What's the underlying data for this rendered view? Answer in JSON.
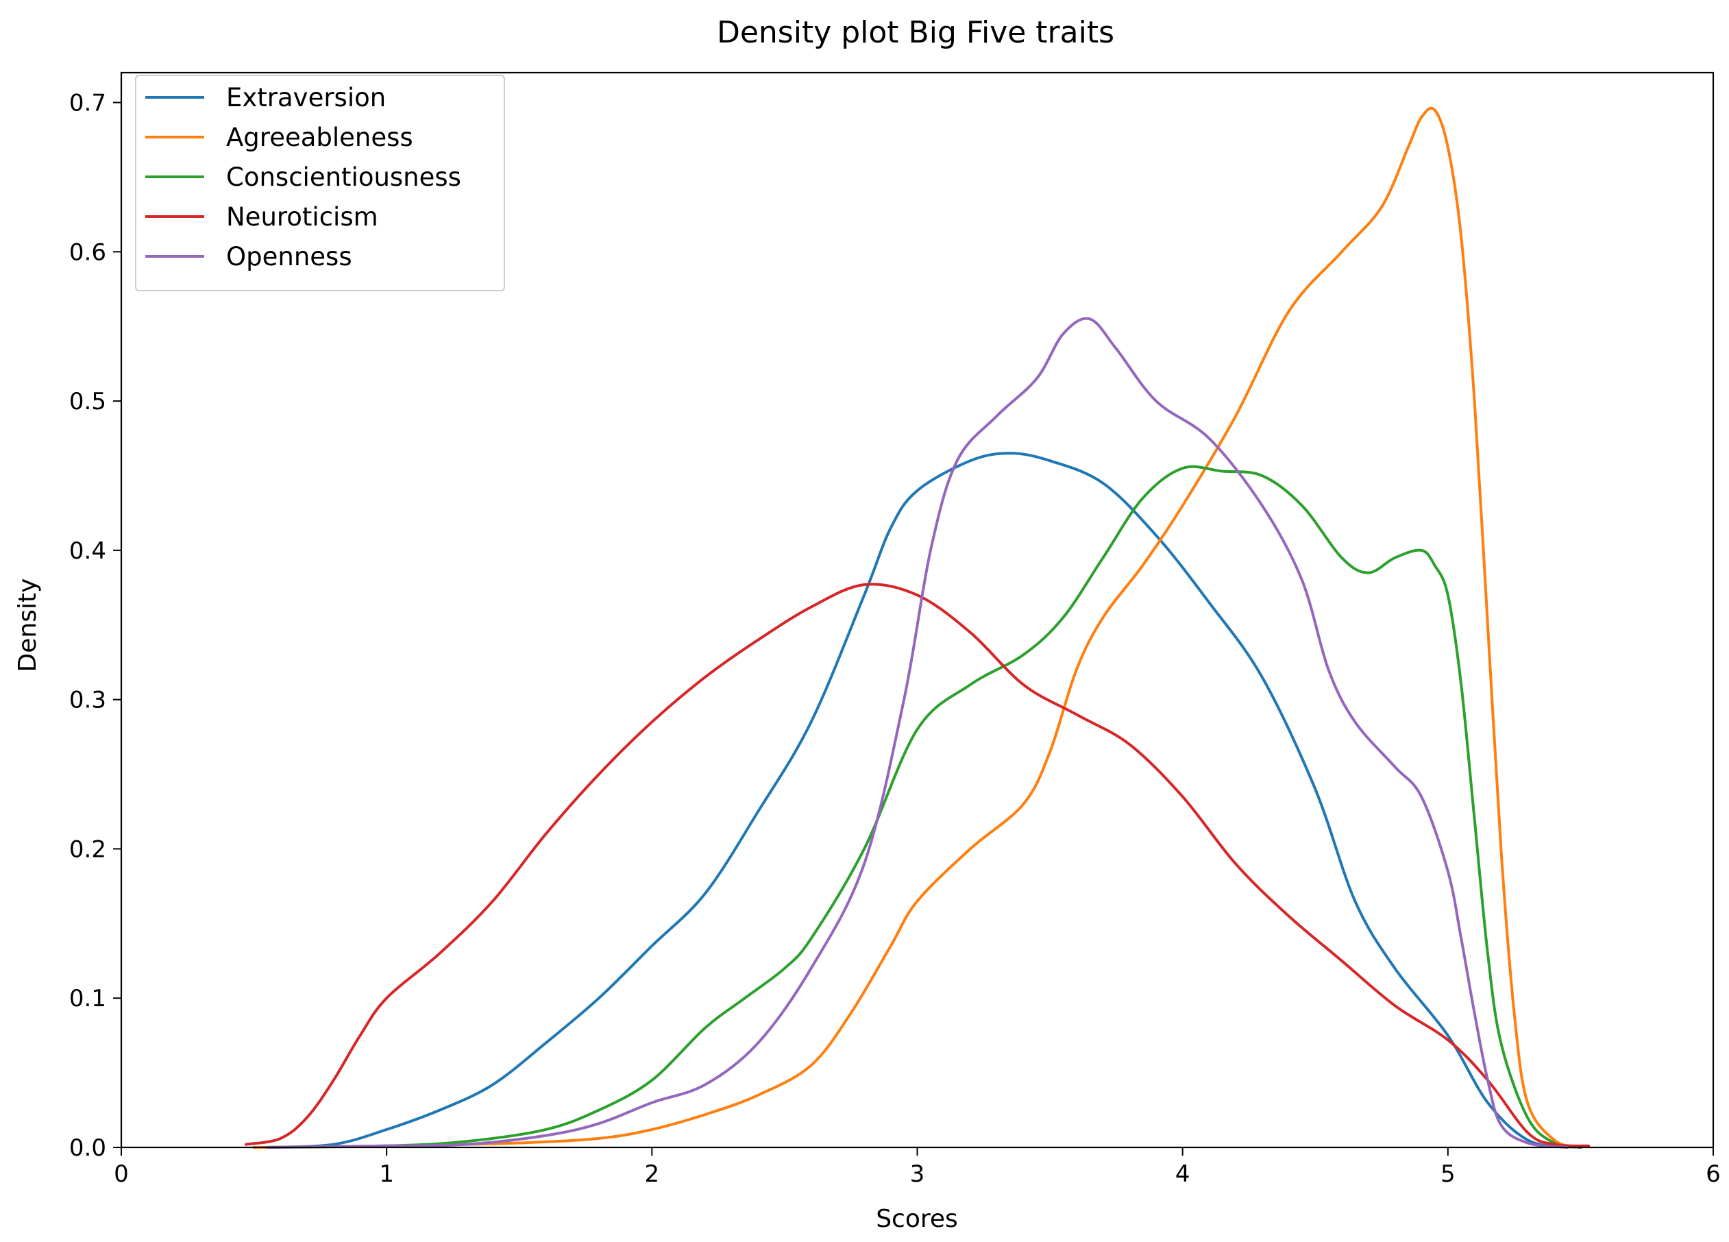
{
  "chart_data": {
    "type": "line",
    "title": "Density plot Big Five traits",
    "xlabel": "Scores",
    "ylabel": "Density",
    "xlim": [
      0,
      6
    ],
    "ylim": [
      0,
      0.72
    ],
    "xticks": [
      0,
      1,
      2,
      3,
      4,
      5,
      6
    ],
    "xtick_labels": [
      "0",
      "1",
      "2",
      "3",
      "4",
      "5",
      "6"
    ],
    "yticks": [
      0,
      0.1,
      0.2,
      0.3,
      0.4,
      0.5,
      0.6,
      0.7
    ],
    "ytick_labels": [
      "0.0",
      "0.1",
      "0.2",
      "0.3",
      "0.4",
      "0.5",
      "0.6",
      "0.7"
    ],
    "grid": false,
    "legend_position": "top-left",
    "series": [
      {
        "name": "Extraversion",
        "color": "#1f77b4",
        "points": [
          [
            0.55,
            0.0
          ],
          [
            0.8,
            0.002
          ],
          [
            1.0,
            0.012
          ],
          [
            1.2,
            0.025
          ],
          [
            1.4,
            0.042
          ],
          [
            1.6,
            0.07
          ],
          [
            1.8,
            0.1
          ],
          [
            2.0,
            0.135
          ],
          [
            2.2,
            0.17
          ],
          [
            2.4,
            0.225
          ],
          [
            2.6,
            0.285
          ],
          [
            2.8,
            0.37
          ],
          [
            2.9,
            0.415
          ],
          [
            3.0,
            0.44
          ],
          [
            3.2,
            0.46
          ],
          [
            3.35,
            0.465
          ],
          [
            3.5,
            0.46
          ],
          [
            3.7,
            0.445
          ],
          [
            3.9,
            0.41
          ],
          [
            4.1,
            0.365
          ],
          [
            4.3,
            0.315
          ],
          [
            4.5,
            0.24
          ],
          [
            4.65,
            0.165
          ],
          [
            4.8,
            0.12
          ],
          [
            5.0,
            0.075
          ],
          [
            5.15,
            0.03
          ],
          [
            5.3,
            0.005
          ],
          [
            5.45,
            0.0
          ]
        ]
      },
      {
        "name": "Agreeableness",
        "color": "#ff7f0e",
        "points": [
          [
            0.5,
            0.0
          ],
          [
            1.0,
            0.001
          ],
          [
            1.5,
            0.003
          ],
          [
            1.8,
            0.006
          ],
          [
            2.0,
            0.012
          ],
          [
            2.2,
            0.022
          ],
          [
            2.4,
            0.035
          ],
          [
            2.6,
            0.055
          ],
          [
            2.75,
            0.09
          ],
          [
            2.9,
            0.135
          ],
          [
            3.0,
            0.165
          ],
          [
            3.2,
            0.2
          ],
          [
            3.4,
            0.23
          ],
          [
            3.5,
            0.265
          ],
          [
            3.6,
            0.32
          ],
          [
            3.7,
            0.355
          ],
          [
            3.85,
            0.39
          ],
          [
            4.0,
            0.43
          ],
          [
            4.2,
            0.49
          ],
          [
            4.4,
            0.56
          ],
          [
            4.6,
            0.6
          ],
          [
            4.75,
            0.63
          ],
          [
            4.85,
            0.67
          ],
          [
            4.9,
            0.69
          ],
          [
            4.95,
            0.695
          ],
          [
            5.0,
            0.67
          ],
          [
            5.05,
            0.61
          ],
          [
            5.1,
            0.5
          ],
          [
            5.15,
            0.35
          ],
          [
            5.2,
            0.2
          ],
          [
            5.25,
            0.09
          ],
          [
            5.3,
            0.03
          ],
          [
            5.4,
            0.005
          ],
          [
            5.5,
            0.0
          ]
        ]
      },
      {
        "name": "Conscientiousness",
        "color": "#2ca02c",
        "points": [
          [
            0.55,
            0.0
          ],
          [
            1.0,
            0.001
          ],
          [
            1.3,
            0.004
          ],
          [
            1.6,
            0.012
          ],
          [
            1.8,
            0.025
          ],
          [
            2.0,
            0.045
          ],
          [
            2.2,
            0.08
          ],
          [
            2.35,
            0.1
          ],
          [
            2.5,
            0.12
          ],
          [
            2.6,
            0.14
          ],
          [
            2.8,
            0.2
          ],
          [
            3.0,
            0.28
          ],
          [
            3.2,
            0.31
          ],
          [
            3.4,
            0.33
          ],
          [
            3.55,
            0.355
          ],
          [
            3.7,
            0.395
          ],
          [
            3.85,
            0.435
          ],
          [
            4.0,
            0.455
          ],
          [
            4.15,
            0.453
          ],
          [
            4.3,
            0.45
          ],
          [
            4.45,
            0.43
          ],
          [
            4.6,
            0.395
          ],
          [
            4.7,
            0.385
          ],
          [
            4.8,
            0.395
          ],
          [
            4.9,
            0.4
          ],
          [
            4.95,
            0.39
          ],
          [
            5.0,
            0.37
          ],
          [
            5.05,
            0.31
          ],
          [
            5.1,
            0.22
          ],
          [
            5.15,
            0.13
          ],
          [
            5.2,
            0.07
          ],
          [
            5.3,
            0.02
          ],
          [
            5.4,
            0.003
          ],
          [
            5.5,
            0.0
          ]
        ]
      },
      {
        "name": "Neuroticism",
        "color": "#d62728",
        "points": [
          [
            0.47,
            0.002
          ],
          [
            0.6,
            0.006
          ],
          [
            0.7,
            0.02
          ],
          [
            0.8,
            0.045
          ],
          [
            0.9,
            0.075
          ],
          [
            1.0,
            0.1
          ],
          [
            1.2,
            0.13
          ],
          [
            1.4,
            0.165
          ],
          [
            1.6,
            0.21
          ],
          [
            1.8,
            0.25
          ],
          [
            2.0,
            0.285
          ],
          [
            2.2,
            0.315
          ],
          [
            2.4,
            0.34
          ],
          [
            2.6,
            0.362
          ],
          [
            2.8,
            0.377
          ],
          [
            3.0,
            0.37
          ],
          [
            3.2,
            0.345
          ],
          [
            3.4,
            0.31
          ],
          [
            3.6,
            0.29
          ],
          [
            3.8,
            0.27
          ],
          [
            4.0,
            0.235
          ],
          [
            4.2,
            0.19
          ],
          [
            4.4,
            0.155
          ],
          [
            4.6,
            0.125
          ],
          [
            4.8,
            0.095
          ],
          [
            5.0,
            0.072
          ],
          [
            5.15,
            0.045
          ],
          [
            5.3,
            0.01
          ],
          [
            5.4,
            0.002
          ],
          [
            5.53,
            0.001
          ]
        ]
      },
      {
        "name": "Openness",
        "color": "#9467bd",
        "points": [
          [
            0.55,
            0.0
          ],
          [
            1.0,
            0.001
          ],
          [
            1.3,
            0.002
          ],
          [
            1.6,
            0.008
          ],
          [
            1.8,
            0.016
          ],
          [
            2.0,
            0.03
          ],
          [
            2.2,
            0.042
          ],
          [
            2.4,
            0.07
          ],
          [
            2.6,
            0.12
          ],
          [
            2.8,
            0.19
          ],
          [
            2.95,
            0.3
          ],
          [
            3.05,
            0.4
          ],
          [
            3.15,
            0.46
          ],
          [
            3.3,
            0.49
          ],
          [
            3.45,
            0.515
          ],
          [
            3.55,
            0.545
          ],
          [
            3.65,
            0.555
          ],
          [
            3.75,
            0.535
          ],
          [
            3.9,
            0.5
          ],
          [
            4.1,
            0.475
          ],
          [
            4.3,
            0.43
          ],
          [
            4.45,
            0.38
          ],
          [
            4.55,
            0.32
          ],
          [
            4.65,
            0.285
          ],
          [
            4.8,
            0.255
          ],
          [
            4.9,
            0.235
          ],
          [
            5.0,
            0.185
          ],
          [
            5.05,
            0.14
          ],
          [
            5.1,
            0.09
          ],
          [
            5.15,
            0.045
          ],
          [
            5.2,
            0.015
          ],
          [
            5.3,
            0.003
          ],
          [
            5.45,
            0.0
          ]
        ]
      }
    ]
  }
}
